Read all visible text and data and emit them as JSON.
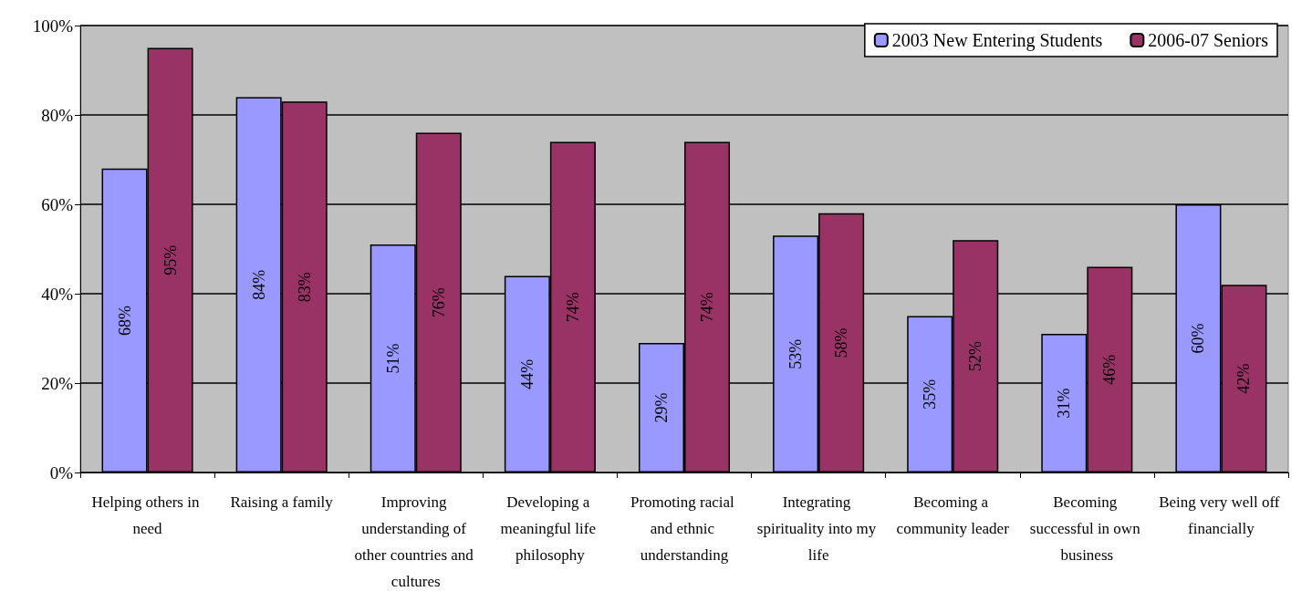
{
  "chart_data": {
    "type": "bar",
    "categories": [
      "Helping others in need",
      "Raising a family",
      "Improving understanding of other countries and cultures",
      "Developing a meaningful life philosophy",
      "Promoting racial and ethnic understanding",
      "Integrating spirituality into my life",
      "Becoming a community leader",
      "Becoming successful in own business",
      "Being very well off financially"
    ],
    "series": [
      {
        "name": "2003 New Entering Students",
        "color": "#9999ff",
        "values": [
          68,
          84,
          51,
          44,
          29,
          53,
          35,
          31,
          60
        ],
        "value_labels": [
          "68%",
          "84%",
          "51%",
          "44%",
          "29%",
          "53%",
          "35%",
          "31%",
          "60%"
        ]
      },
      {
        "name": "2006-07 Seniors",
        "color": "#993366",
        "values": [
          95,
          83,
          76,
          74,
          74,
          58,
          52,
          46,
          42
        ],
        "value_labels": [
          "95%",
          "83%",
          "76%",
          "74%",
          "74%",
          "58%",
          "52%",
          "46%",
          "42%"
        ]
      }
    ],
    "ylim": [
      0,
      100
    ],
    "yticks": [
      {
        "value": 0,
        "label": "0%"
      },
      {
        "value": 20,
        "label": "20%"
      },
      {
        "value": 40,
        "label": "40%"
      },
      {
        "value": 60,
        "label": "60%"
      },
      {
        "value": 80,
        "label": "80%"
      },
      {
        "value": 100,
        "label": "100%"
      }
    ],
    "grid": "y",
    "legend": "top right"
  }
}
